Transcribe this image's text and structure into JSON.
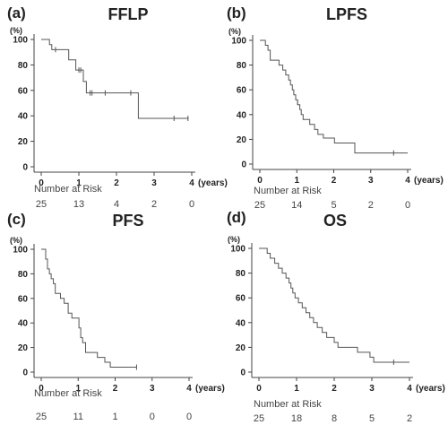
{
  "chart_data": [
    {
      "type": "line",
      "panel": "(a)",
      "title": "FFLP",
      "ylabel": "(%)",
      "x_unit": "(years)",
      "xlim": [
        0,
        4
      ],
      "ylim": [
        0,
        100
      ],
      "xticks": [
        "0",
        "1",
        "2",
        "3",
        "4"
      ],
      "yticks": [
        "0",
        "20",
        "40",
        "60",
        "80",
        "100"
      ],
      "risk_title": "Number at Risk",
      "number_at_risk": [
        "25",
        "13",
        "4",
        "2",
        "0"
      ],
      "steps": [
        [
          0,
          100
        ],
        [
          0.22,
          100
        ],
        [
          0.22,
          96
        ],
        [
          0.28,
          96
        ],
        [
          0.28,
          92
        ],
        [
          0.73,
          92
        ],
        [
          0.73,
          84
        ],
        [
          0.92,
          84
        ],
        [
          0.92,
          76
        ],
        [
          1.12,
          76
        ],
        [
          1.12,
          67
        ],
        [
          1.2,
          67
        ],
        [
          1.2,
          58
        ],
        [
          2.58,
          58
        ],
        [
          2.58,
          38
        ],
        [
          3.92,
          38
        ]
      ],
      "censored": [
        [
          0.38,
          92
        ],
        [
          1.0,
          76
        ],
        [
          1.05,
          76
        ],
        [
          1.3,
          58
        ],
        [
          1.35,
          58
        ],
        [
          1.7,
          58
        ],
        [
          2.38,
          58
        ],
        [
          3.53,
          38
        ],
        [
          3.9,
          38
        ]
      ]
    },
    {
      "type": "line",
      "panel": "(b)",
      "title": "LPFS",
      "ylabel": "(%)",
      "x_unit": "(years)",
      "xlim": [
        0,
        4
      ],
      "ylim": [
        0,
        100
      ],
      "xticks": [
        "0",
        "1",
        "2",
        "3",
        "4"
      ],
      "yticks": [
        "0",
        "20",
        "40",
        "60",
        "80",
        "100"
      ],
      "risk_title": "Number at Risk",
      "number_at_risk": [
        "25",
        "14",
        "5",
        "2",
        "0"
      ],
      "steps": [
        [
          0,
          100
        ],
        [
          0.15,
          100
        ],
        [
          0.15,
          96
        ],
        [
          0.22,
          96
        ],
        [
          0.22,
          92
        ],
        [
          0.28,
          92
        ],
        [
          0.28,
          84
        ],
        [
          0.52,
          84
        ],
        [
          0.52,
          80
        ],
        [
          0.62,
          80
        ],
        [
          0.62,
          76
        ],
        [
          0.7,
          76
        ],
        [
          0.7,
          72
        ],
        [
          0.78,
          72
        ],
        [
          0.78,
          68
        ],
        [
          0.83,
          68
        ],
        [
          0.83,
          64
        ],
        [
          0.88,
          64
        ],
        [
          0.88,
          60
        ],
        [
          0.92,
          60
        ],
        [
          0.92,
          56
        ],
        [
          0.97,
          56
        ],
        [
          0.97,
          52
        ],
        [
          1.02,
          52
        ],
        [
          1.02,
          48
        ],
        [
          1.08,
          48
        ],
        [
          1.08,
          44
        ],
        [
          1.12,
          44
        ],
        [
          1.12,
          40
        ],
        [
          1.17,
          40
        ],
        [
          1.17,
          36
        ],
        [
          1.35,
          36
        ],
        [
          1.35,
          32
        ],
        [
          1.48,
          32
        ],
        [
          1.48,
          28
        ],
        [
          1.57,
          28
        ],
        [
          1.57,
          24
        ],
        [
          1.72,
          24
        ],
        [
          1.72,
          21
        ],
        [
          2.02,
          21
        ],
        [
          2.02,
          17
        ],
        [
          2.57,
          17
        ],
        [
          2.57,
          9
        ],
        [
          4.0,
          9
        ]
      ],
      "censored": [
        [
          1.02,
          50
        ],
        [
          3.62,
          9
        ]
      ]
    },
    {
      "type": "line",
      "panel": "(c)",
      "title": "PFS",
      "ylabel": "(%)",
      "x_unit": "(years)",
      "xlim": [
        0,
        4
      ],
      "ylim": [
        0,
        100
      ],
      "xticks": [
        "0",
        "1",
        "2",
        "3",
        "4"
      ],
      "yticks": [
        "0",
        "20",
        "40",
        "60",
        "80",
        "100"
      ],
      "risk_title": "Number at Risk",
      "number_at_risk": [
        "25",
        "11",
        "1",
        "0",
        "0"
      ],
      "steps": [
        [
          0,
          100
        ],
        [
          0.12,
          100
        ],
        [
          0.12,
          92
        ],
        [
          0.17,
          92
        ],
        [
          0.17,
          84
        ],
        [
          0.22,
          84
        ],
        [
          0.22,
          80
        ],
        [
          0.27,
          80
        ],
        [
          0.27,
          76
        ],
        [
          0.33,
          76
        ],
        [
          0.33,
          72
        ],
        [
          0.38,
          72
        ],
        [
          0.38,
          64
        ],
        [
          0.52,
          64
        ],
        [
          0.52,
          60
        ],
        [
          0.62,
          60
        ],
        [
          0.62,
          56
        ],
        [
          0.73,
          56
        ],
        [
          0.73,
          48
        ],
        [
          0.83,
          48
        ],
        [
          0.83,
          44
        ],
        [
          1.02,
          44
        ],
        [
          1.02,
          36
        ],
        [
          1.07,
          36
        ],
        [
          1.07,
          28
        ],
        [
          1.12,
          28
        ],
        [
          1.12,
          24
        ],
        [
          1.2,
          24
        ],
        [
          1.2,
          16
        ],
        [
          1.52,
          16
        ],
        [
          1.52,
          12
        ],
        [
          1.72,
          12
        ],
        [
          1.72,
          8
        ],
        [
          1.87,
          8
        ],
        [
          1.87,
          4
        ],
        [
          2.58,
          4
        ]
      ],
      "censored": [
        [
          2.58,
          4
        ]
      ]
    },
    {
      "type": "line",
      "panel": "(d)",
      "title": "OS",
      "ylabel": "(%)",
      "x_unit": "(years)",
      "xlim": [
        0,
        4
      ],
      "ylim": [
        0,
        100
      ],
      "xticks": [
        "0",
        "1",
        "2",
        "3",
        "4"
      ],
      "yticks": [
        "0",
        "20",
        "40",
        "60",
        "80",
        "100"
      ],
      "risk_title": "Number at Risk",
      "number_at_risk": [
        "25",
        "18",
        "8",
        "5",
        "2"
      ],
      "steps": [
        [
          0,
          100
        ],
        [
          0.22,
          100
        ],
        [
          0.22,
          96
        ],
        [
          0.3,
          96
        ],
        [
          0.3,
          92
        ],
        [
          0.42,
          92
        ],
        [
          0.42,
          88
        ],
        [
          0.52,
          88
        ],
        [
          0.52,
          84
        ],
        [
          0.62,
          84
        ],
        [
          0.62,
          80
        ],
        [
          0.72,
          80
        ],
        [
          0.72,
          76
        ],
        [
          0.8,
          76
        ],
        [
          0.8,
          72
        ],
        [
          0.85,
          72
        ],
        [
          0.85,
          68
        ],
        [
          0.9,
          68
        ],
        [
          0.9,
          64
        ],
        [
          0.96,
          64
        ],
        [
          0.96,
          60
        ],
        [
          1.05,
          60
        ],
        [
          1.05,
          56
        ],
        [
          1.15,
          56
        ],
        [
          1.15,
          52
        ],
        [
          1.25,
          52
        ],
        [
          1.25,
          48
        ],
        [
          1.35,
          48
        ],
        [
          1.35,
          44
        ],
        [
          1.45,
          44
        ],
        [
          1.45,
          40
        ],
        [
          1.55,
          40
        ],
        [
          1.55,
          36
        ],
        [
          1.68,
          36
        ],
        [
          1.68,
          32
        ],
        [
          1.8,
          32
        ],
        [
          1.8,
          28
        ],
        [
          2.0,
          28
        ],
        [
          2.0,
          24
        ],
        [
          2.1,
          24
        ],
        [
          2.1,
          20
        ],
        [
          2.62,
          20
        ],
        [
          2.62,
          16
        ],
        [
          2.95,
          16
        ],
        [
          2.95,
          12
        ],
        [
          3.05,
          12
        ],
        [
          3.05,
          8
        ],
        [
          4.0,
          8
        ]
      ],
      "censored": [
        [
          3.58,
          8
        ]
      ]
    }
  ]
}
